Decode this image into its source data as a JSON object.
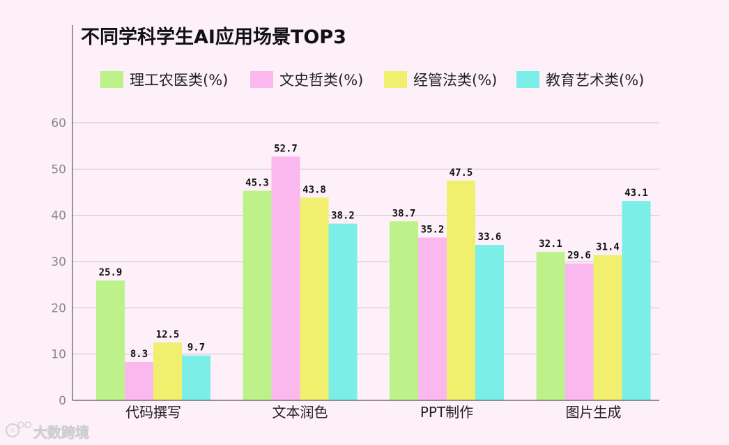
{
  "chart_data": {
    "type": "bar",
    "title": "不同学科学生AI应用场景TOP3",
    "categories": [
      "代码撰写",
      "文本润色",
      "PPT制作",
      "图片生成"
    ],
    "series": [
      {
        "name": "理工农医类(%)",
        "color": "#bdf28a",
        "values": [
          25.9,
          45.3,
          38.7,
          32.1
        ]
      },
      {
        "name": "文史哲类(%)",
        "color": "#fbb8ee",
        "values": [
          8.3,
          52.7,
          35.2,
          29.6
        ]
      },
      {
        "name": "经管法类(%)",
        "color": "#f0ef6e",
        "values": [
          12.5,
          43.8,
          47.5,
          31.4
        ]
      },
      {
        "name": "教育艺术类(%)",
        "color": "#7ceee8",
        "values": [
          9.7,
          38.2,
          33.6,
          43.1
        ]
      }
    ],
    "ylim": [
      0,
      60
    ],
    "yticks": [
      0,
      10,
      20,
      30,
      40,
      50,
      60
    ],
    "grid": true,
    "legend_position": "top"
  },
  "watermark": {
    "text": "大数跨境",
    "icon": "logo-icon"
  }
}
